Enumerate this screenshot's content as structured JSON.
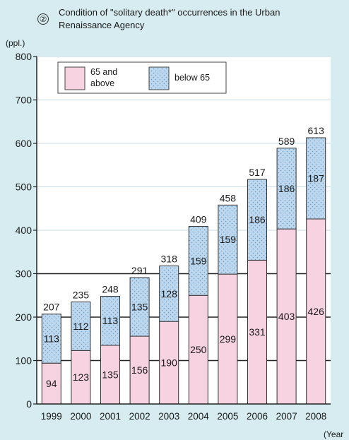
{
  "chart_data": {
    "type": "bar",
    "stacked": true,
    "marker": "②",
    "title_lines": [
      "Condition of \"solitary death*\" occurrences in the Urban",
      "Renaissance Agency"
    ],
    "ylabel": "(ppl.)",
    "xlabel": "(Year",
    "ylim": [
      0,
      800
    ],
    "yticks": [
      0,
      100,
      200,
      300,
      400,
      500,
      600,
      700,
      800
    ],
    "categories": [
      "1999",
      "2000",
      "2001",
      "2002",
      "2003",
      "2004",
      "2005",
      "2006",
      "2007",
      "2008"
    ],
    "series": [
      {
        "name": "65 and above",
        "name_lines": [
          "65 and",
          "above"
        ],
        "values": [
          94,
          123,
          135,
          156,
          190,
          250,
          299,
          331,
          403,
          426
        ],
        "color": "#f7d3e1"
      },
      {
        "name": "below 65",
        "name_lines": [
          "below 65"
        ],
        "values": [
          113,
          112,
          113,
          135,
          128,
          159,
          159,
          186,
          186,
          187
        ],
        "color": "#bcd7ee"
      }
    ],
    "totals": [
      207,
      235,
      248,
      291,
      318,
      409,
      458,
      517,
      589,
      613
    ],
    "legend_position": "top-left",
    "grid": true,
    "colors": {
      "background": "#d7ecf0",
      "plot_background": "#ffffff",
      "text": "#1a1a1a",
      "dot": "#6fa0c8"
    }
  }
}
